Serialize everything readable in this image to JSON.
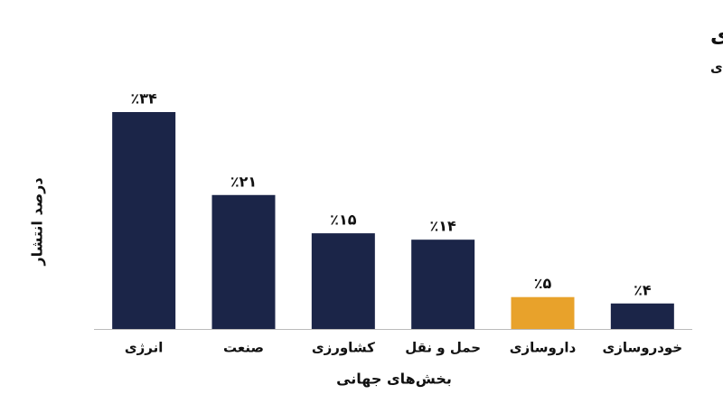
{
  "chart_data": {
    "type": "bar",
    "title": "مقایسه ردپای کربن جهانی: پیشی گرفتن داروسازی از خودروسازی",
    "subtitle": "درصد انتشار گازهای گلخانه‌ای",
    "y_label": "درصد انتشار",
    "x_label": "بخش‌های جهانی",
    "categories": [
      "انرژی",
      "صنعت",
      "کشاورزی",
      "حمل و نقل",
      "داروسازی",
      "خودروسازی"
    ],
    "values": [
      34,
      21,
      15,
      14,
      5,
      4
    ],
    "value_labels": [
      "٪۳۴",
      "٪۲۱",
      "٪۱۵",
      "٪۱۴",
      "٪۵",
      "٪۴"
    ],
    "colors": [
      "#1b2548",
      "#1b2548",
      "#1b2548",
      "#1b2548",
      "#e8a22b",
      "#1b2548"
    ],
    "ylim": [
      0,
      34
    ]
  }
}
